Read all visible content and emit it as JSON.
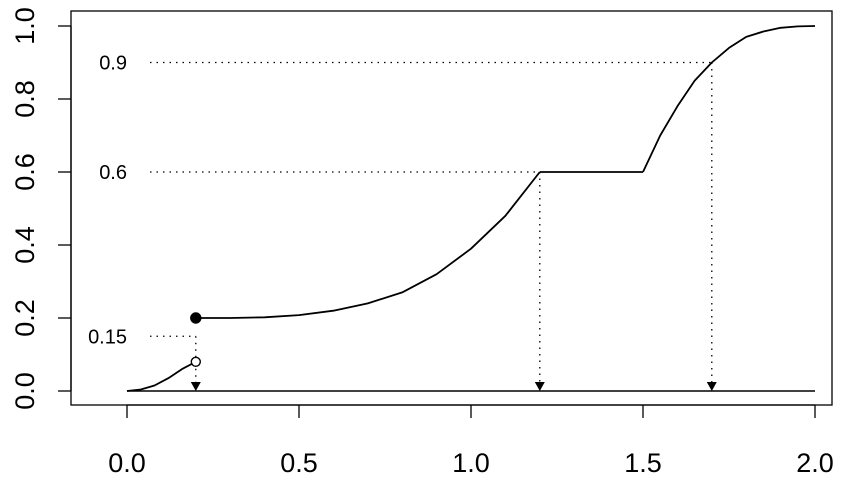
{
  "chart_data": {
    "type": "line",
    "title": "",
    "xlabel": "",
    "ylabel": "",
    "xlim": [
      0,
      2
    ],
    "ylim": [
      0,
      1
    ],
    "grid": false,
    "x_ticks": [
      0.0,
      0.5,
      1.0,
      1.5,
      2.0
    ],
    "x_tick_labels": [
      "0.0",
      "0.5",
      "1.0",
      "1.5",
      "2.0"
    ],
    "y_ticks": [
      0.0,
      0.2,
      0.4,
      0.6,
      0.8,
      1.0
    ],
    "y_tick_labels": [
      "0.0",
      "0.2",
      "0.4",
      "0.6",
      "0.8",
      "1.0"
    ],
    "series": [
      {
        "x": [
          0.0,
          0.04,
          0.08,
          0.12,
          0.16,
          0.2
        ],
        "y": [
          0.0,
          0.004,
          0.015,
          0.035,
          0.06,
          0.08
        ]
      },
      {
        "x": [
          0.2,
          0.3,
          0.4,
          0.5,
          0.6,
          0.7,
          0.8,
          0.9,
          1.0,
          1.1,
          1.2
        ],
        "y": [
          0.2,
          0.2,
          0.202,
          0.208,
          0.22,
          0.24,
          0.27,
          0.32,
          0.39,
          0.48,
          0.6
        ]
      },
      {
        "x": [
          1.2,
          1.5
        ],
        "y": [
          0.6,
          0.6
        ]
      },
      {
        "x": [
          1.5,
          1.55,
          1.6,
          1.65,
          1.7,
          1.75,
          1.8,
          1.85,
          1.9,
          1.95,
          2.0
        ],
        "y": [
          0.6,
          0.7,
          0.78,
          0.85,
          0.9,
          0.94,
          0.97,
          0.985,
          0.995,
          0.999,
          1.0
        ]
      }
    ],
    "baseline": {
      "x": [
        0.0,
        2.0
      ],
      "y": 0.0
    },
    "points": [
      {
        "x": 0.2,
        "y": 0.2,
        "filled": true
      },
      {
        "x": 0.2,
        "y": 0.08,
        "filled": false
      }
    ],
    "quantile_guides": [
      {
        "label": "0.15",
        "p": 0.15,
        "x": 0.2
      },
      {
        "label": "0.6",
        "p": 0.6,
        "x": 1.2
      },
      {
        "label": "0.9",
        "p": 0.9,
        "x": 1.7
      }
    ]
  }
}
